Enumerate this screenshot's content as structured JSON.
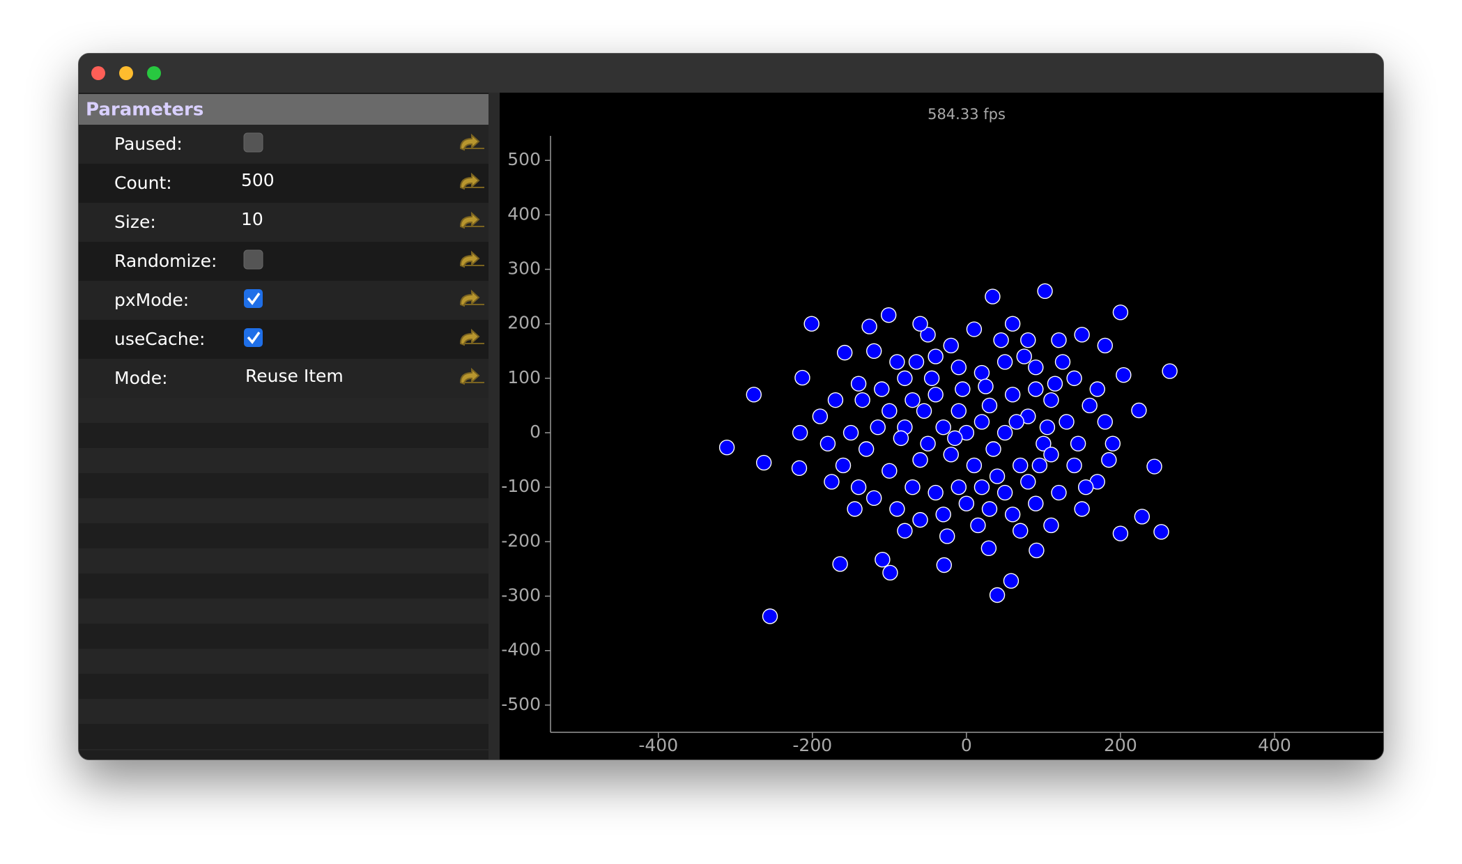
{
  "parameters": {
    "title": "Parameters",
    "rows": [
      {
        "label": "Paused:",
        "checked": false
      },
      {
        "label": "Count:",
        "value": 500
      },
      {
        "label": "Size:",
        "value": 10
      },
      {
        "label": "Randomize:",
        "checked": false
      },
      {
        "label": "pxMode:",
        "checked": true
      },
      {
        "label": "useCache:",
        "checked": true
      },
      {
        "label": "Mode:",
        "value": "Reuse Item"
      }
    ]
  },
  "chart_data": {
    "type": "scatter",
    "annotation": "584.33 fps",
    "color": "#0000ff",
    "xlim": [
      -540,
      543
    ],
    "ylim": [
      -550,
      545
    ],
    "xticks": [
      -400,
      -200,
      0,
      200,
      400
    ],
    "yticks": [
      500,
      400,
      300,
      200,
      100,
      0,
      -100,
      -200,
      -300,
      -400,
      -500
    ],
    "x": [
      -311,
      -276,
      -255,
      -263,
      -201,
      -213,
      264,
      253,
      200,
      102,
      34,
      200,
      40,
      58,
      -164,
      -109,
      -99,
      -29,
      29,
      91,
      -101,
      224,
      244,
      228,
      204,
      -217,
      -216,
      -158,
      -126,
      -50,
      -60,
      -20,
      10,
      60,
      80,
      120,
      150,
      180,
      170,
      140,
      110,
      90,
      50,
      20,
      -10,
      -40,
      -80,
      -110,
      -140,
      -170,
      -190,
      -180,
      -160,
      -140,
      -120,
      -90,
      -60,
      -30,
      0,
      30,
      60,
      90,
      120,
      150,
      170,
      190,
      180,
      160,
      130,
      100,
      70,
      40,
      10,
      -20,
      -50,
      -80,
      -100,
      -70,
      -40,
      -10,
      20,
      50,
      80,
      110,
      140,
      -130,
      -100,
      -70,
      -40,
      -10,
      20,
      50,
      80,
      0,
      30,
      60,
      -30,
      -60,
      90,
      -90,
      -120,
      70,
      -80,
      110,
      -150,
      145,
      -25,
      15,
      75,
      -5,
      -115,
      125,
      -45,
      35,
      -85,
      65,
      105,
      -135,
      155,
      -65,
      95,
      -175,
      185,
      -145,
      45,
      -15,
      25,
      -55,
      115
    ],
    "values": [
      -27,
      70,
      -337,
      -55,
      200,
      101,
      113,
      -182,
      -185,
      260,
      250,
      221,
      -298,
      -272,
      -241,
      -233,
      -257,
      -243,
      -212,
      -216,
      216,
      41,
      -62,
      -154,
      106,
      -65,
      0,
      147,
      195,
      180,
      200,
      160,
      190,
      200,
      170,
      170,
      180,
      160,
      80,
      100,
      60,
      120,
      130,
      110,
      120,
      140,
      100,
      80,
      90,
      60,
      30,
      -20,
      -60,
      -100,
      -120,
      -140,
      -160,
      -150,
      -130,
      -140,
      -150,
      -130,
      -110,
      -140,
      -90,
      -20,
      20,
      50,
      20,
      -20,
      -60,
      -80,
      -60,
      -40,
      -20,
      10,
      40,
      60,
      70,
      40,
      20,
      0,
      30,
      -40,
      -60,
      -30,
      -70,
      -100,
      -110,
      -100,
      -100,
      -110,
      -90,
      0,
      50,
      70,
      10,
      -50,
      80,
      130,
      150,
      -180,
      -180,
      -170,
      0,
      -20,
      -190,
      -170,
      140,
      80,
      10,
      130,
      100,
      -30,
      -10,
      20,
      10,
      60,
      -100,
      130,
      -60,
      -90,
      -50,
      -140,
      170,
      -10,
      85,
      40,
      90
    ]
  }
}
